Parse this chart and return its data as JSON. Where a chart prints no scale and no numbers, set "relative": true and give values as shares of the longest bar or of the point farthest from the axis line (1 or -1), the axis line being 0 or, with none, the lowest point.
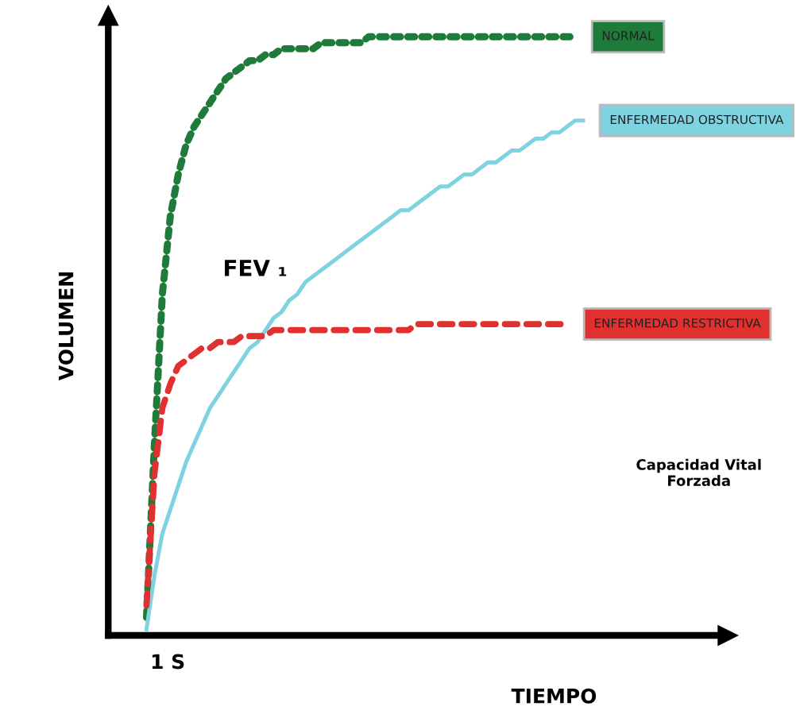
{
  "chart_data": {
    "type": "line",
    "relative": true,
    "xlabel": "TIEMPO",
    "ylabel": "VOLUMEN",
    "legend": false,
    "categories": [
      null,
      null,
      null,
      null,
      null,
      null,
      null,
      null,
      null,
      null,
      null,
      null,
      null,
      null,
      null,
      null,
      null,
      null,
      null,
      null,
      null,
      null,
      null,
      null,
      null,
      null,
      null,
      null,
      null,
      null,
      null,
      null,
      null,
      null,
      null,
      null,
      null,
      null,
      null,
      null,
      null,
      null,
      null,
      null,
      null,
      null,
      null,
      null,
      null,
      null,
      null,
      null,
      null,
      null,
      null,
      null
    ],
    "annotations": [
      "1 S",
      "FEV ₁",
      "Capacidad Vital Forzada"
    ],
    "series": [
      {
        "name": "NORMAL",
        "color": "#1e7b3a",
        "line_style": "dotted",
        "values": [
          0.03,
          0.32,
          0.57,
          0.7,
          0.77,
          0.82,
          0.85,
          0.87,
          0.89,
          0.91,
          0.93,
          0.94,
          0.95,
          0.96,
          0.96,
          0.97,
          0.97,
          0.98,
          0.98,
          0.98,
          0.98,
          0.98,
          0.99,
          0.99,
          0.99,
          0.99,
          0.99,
          0.99,
          1,
          1,
          1,
          1,
          1,
          1,
          1,
          1,
          1,
          1,
          1,
          1,
          1,
          1,
          1,
          1,
          1,
          1,
          1,
          1,
          1,
          1,
          1,
          1,
          1,
          1,
          1,
          null
        ]
      },
      {
        "name": "ENFERMEDAD OBSTRUCTIVA",
        "color": "#7fd3e0",
        "line_style": "solid",
        "values": [
          0.01,
          0.1,
          0.17,
          0.21,
          0.25,
          0.29,
          0.32,
          0.35,
          0.38,
          0.4,
          0.42,
          0.44,
          0.46,
          0.48,
          0.49,
          0.51,
          0.53,
          0.54,
          0.56,
          0.57,
          0.59,
          0.6,
          0.61,
          0.62,
          0.63,
          0.64,
          0.65,
          0.66,
          0.67,
          0.68,
          0.69,
          0.7,
          0.71,
          0.71,
          0.72,
          0.73,
          0.74,
          0.75,
          0.75,
          0.76,
          0.77,
          0.77,
          0.78,
          0.79,
          0.79,
          0.8,
          0.81,
          0.81,
          0.82,
          0.83,
          0.83,
          0.84,
          0.84,
          0.85,
          0.86,
          0.86
        ]
      },
      {
        "name": "ENFERMEDAD RESTRICTIVA",
        "color": "#e03030",
        "line_style": "dashed",
        "values": [
          0.05,
          0.27,
          0.38,
          0.42,
          0.45,
          0.46,
          0.47,
          0.48,
          0.48,
          0.49,
          0.49,
          0.49,
          0.5,
          0.5,
          0.5,
          0.5,
          0.51,
          0.51,
          0.51,
          0.51,
          0.51,
          0.51,
          0.51,
          0.51,
          0.51,
          0.51,
          0.51,
          0.51,
          0.51,
          0.51,
          0.51,
          0.51,
          0.51,
          0.51,
          0.52,
          0.52,
          0.52,
          0.52,
          0.52,
          0.52,
          0.52,
          0.52,
          0.52,
          0.52,
          0.52,
          0.52,
          0.52,
          0.52,
          0.52,
          0.52,
          0.52,
          0.52,
          0.52,
          0.52,
          null,
          null
        ]
      }
    ]
  }
}
